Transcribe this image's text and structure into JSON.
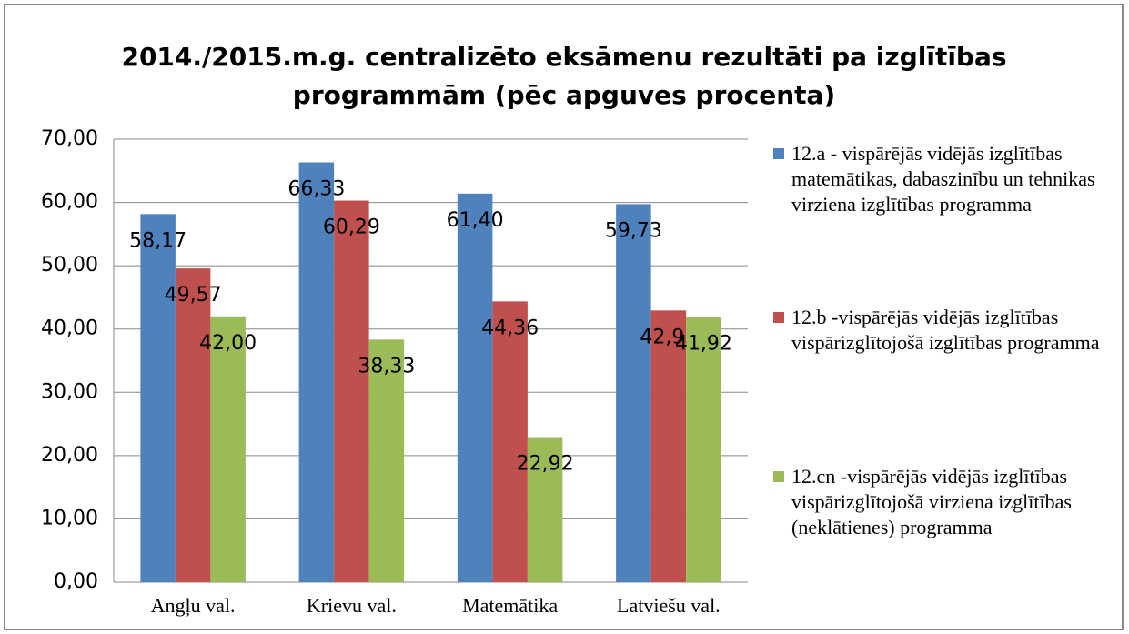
{
  "chart_data": {
    "type": "bar",
    "title": "2014./2015.m.g. centralizēto eksāmenu  rezultāti pa izglītības programmām (pēc apguves procenta)",
    "categories": [
      "Angļu val.",
      "Krievu val.",
      "Matemātika",
      "Latviešu val."
    ],
    "series": [
      {
        "name": "12.a - vispārējās vidējās izglītības matemātikas, dabaszinību un tehnikas virziena izglītības programma",
        "color": "#4f81bd",
        "values": [
          58.17,
          66.33,
          61.4,
          59.73
        ],
        "value_labels": [
          "58,17",
          "66,33",
          "61,40",
          "59,73"
        ]
      },
      {
        "name": "12.b -vispārējās vidējās izglītības vispārizglītojošā izglītības programma",
        "color": "#c0504d",
        "values": [
          49.57,
          60.29,
          44.36,
          42.93
        ],
        "value_labels": [
          "49,57",
          "60,29",
          "44,36",
          "42,93"
        ]
      },
      {
        "name": "12.cn -vispārējās vidējās izglītības vispārizglītojošā virziena izglītības (neklātienes) programma",
        "color": "#9bbb59",
        "values": [
          42.0,
          38.33,
          22.92,
          41.92
        ],
        "value_labels": [
          "42,00",
          "38,33",
          "22,92",
          "41,92"
        ]
      }
    ],
    "ylim": [
      0,
      70
    ],
    "yticks": [
      {
        "value": 0,
        "label": "0,00"
      },
      {
        "value": 10,
        "label": "10,00"
      },
      {
        "value": 20,
        "label": "20,00"
      },
      {
        "value": 30,
        "label": "30,00"
      },
      {
        "value": 40,
        "label": "40,00"
      },
      {
        "value": 50,
        "label": "50,00"
      },
      {
        "value": 60,
        "label": "60,00"
      },
      {
        "value": 70,
        "label": "70,00"
      }
    ],
    "grid": true,
    "legend": "right"
  }
}
